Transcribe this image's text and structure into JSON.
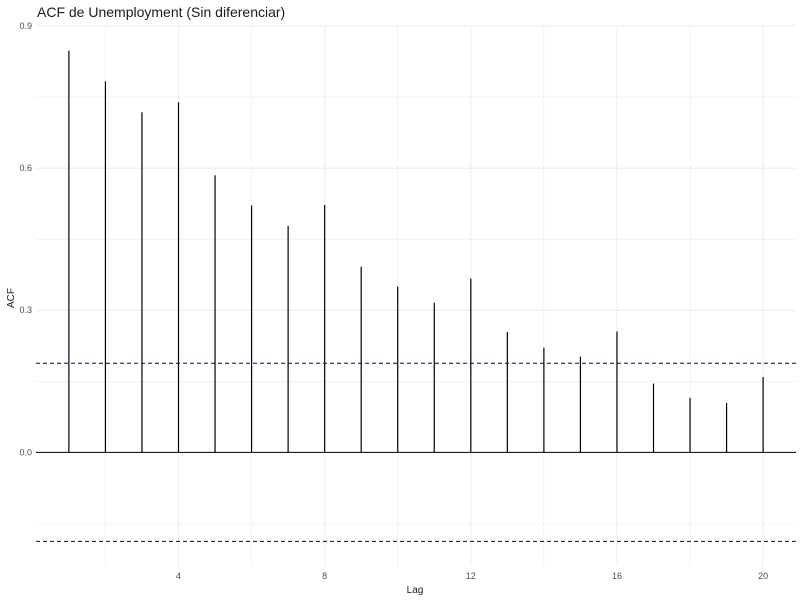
{
  "chart_data": {
    "type": "bar",
    "title": "ACF de Unemployment (Sin diferenciar)",
    "xlabel": "Lag",
    "ylabel": "ACF",
    "x": [
      1,
      2,
      3,
      4,
      5,
      6,
      7,
      8,
      9,
      10,
      11,
      12,
      13,
      14,
      15,
      16,
      17,
      18,
      19,
      20
    ],
    "values": [
      0.848,
      0.783,
      0.718,
      0.739,
      0.585,
      0.521,
      0.478,
      0.522,
      0.392,
      0.35,
      0.316,
      0.367,
      0.254,
      0.221,
      0.202,
      0.255,
      0.145,
      0.115,
      0.104,
      0.159
    ],
    "confidence_bounds": [
      0.188,
      -0.188
    ],
    "xlim": [
      0.1,
      20.9
    ],
    "ylim": [
      -0.24,
      0.9
    ],
    "x_ticks": [
      4,
      8,
      12,
      16,
      20
    ],
    "y_ticks": [
      0.0,
      0.3,
      0.6,
      0.9
    ],
    "y_tick_labels": [
      "0.0",
      "0.3",
      "0.6",
      "0.9"
    ],
    "grid": true,
    "colors": {
      "bars": "#000000",
      "confidence": "#00008b",
      "grid": "#ebebeb"
    }
  }
}
